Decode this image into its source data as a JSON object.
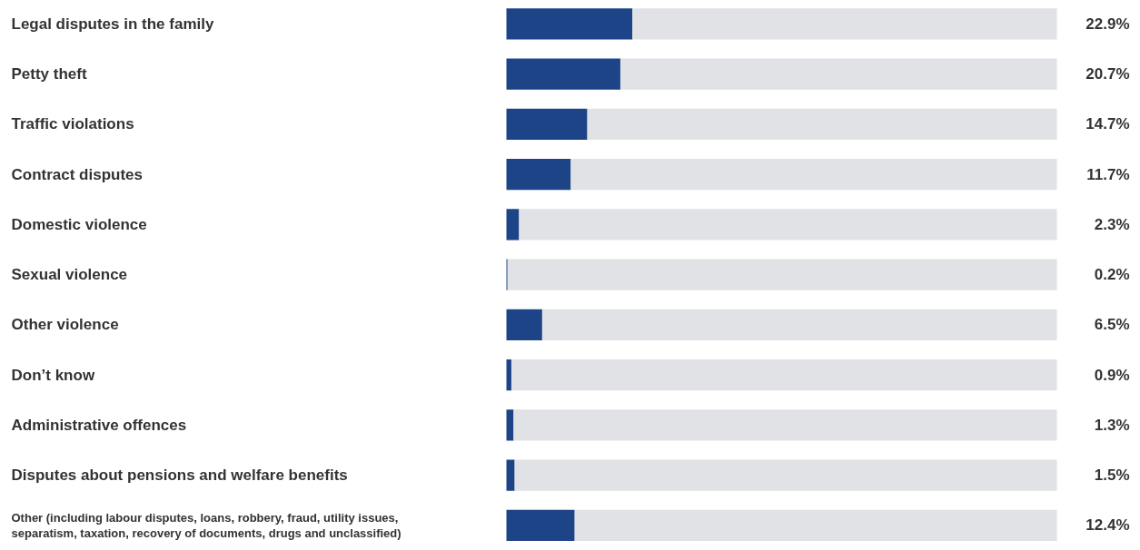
{
  "chart_data": {
    "type": "bar",
    "orientation": "horizontal",
    "stacked": true,
    "categories": [
      "Legal disputes in the family",
      "Petty theft",
      "Traffic violations",
      "Contract disputes",
      "Domestic violence",
      "Sexual violence",
      "Other violence",
      "Don’t know",
      "Administrative offences",
      "Disputes about pensions and welfare benefits",
      "Other (including labour disputes, loans, robbery, fraud, utility issues, separatism, taxation, recovery of documents, drugs and unclassified)"
    ],
    "series": [
      {
        "color": "#1d4487",
        "values": [
          22.9,
          20.7,
          14.7,
          11.7,
          2.3,
          0.2,
          6.5,
          0.9,
          1.3,
          1.5,
          12.4
        ],
        "value_labels": [
          "22.9%",
          "20.7%",
          "14.7%",
          "11.7%",
          "2.3%",
          "0.2%",
          "6.5%",
          "0.9%",
          "1.3%",
          "1.5%",
          "12.4%"
        ]
      },
      {
        "color": "#e1e2e5",
        "values": [
          77.1,
          79.3,
          85.3,
          88.3,
          97.7,
          99.8,
          93.5,
          99.1,
          98.7,
          98.5,
          87.6
        ]
      }
    ],
    "xlim": [
      0,
      100
    ],
    "tick_labels": false,
    "grid": false
  }
}
